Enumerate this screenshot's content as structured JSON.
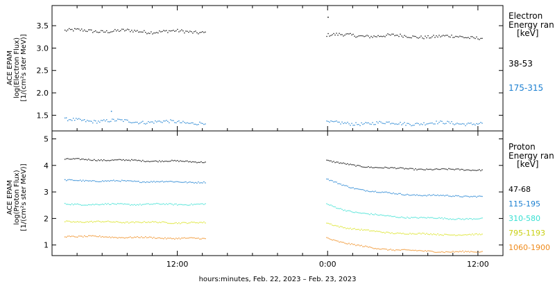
{
  "chart_data": [
    {
      "type": "scatter",
      "ylabel_lines": [
        "ACE EPAM",
        "log(Electron Flux)",
        "[1/(cm²s ster MeV)]"
      ],
      "ylim": [
        1.15,
        3.95
      ],
      "yticks": [
        1.5,
        2.0,
        2.5,
        3.0,
        3.5
      ],
      "ytick_labels": [
        "1.5",
        "2.0",
        "2.5",
        "3.0",
        "3.5"
      ],
      "legend_title": [
        "Electron",
        "Energy ran",
        "[keV]"
      ],
      "series": [
        {
          "name": "38-53",
          "color": "#000000",
          "segments": [
            {
              "x": [
                -21.0,
                -9.8
              ],
              "y": [
                3.4,
                3.37
              ]
            },
            {
              "x": [
                -0.1,
                12.3
              ],
              "y": [
                3.3,
                3.25
              ]
            }
          ],
          "outliers": [
            {
              "x": 0.0,
              "y": 3.7
            }
          ]
        },
        {
          "name": "175-315",
          "color": "#1a7fd1",
          "segments": [
            {
              "x": [
                -21.0,
                -9.8
              ],
              "y": [
                1.4,
                1.34
              ]
            },
            {
              "x": [
                -0.1,
                12.3
              ],
              "y": [
                1.33,
                1.33
              ]
            }
          ],
          "outliers": [
            {
              "x": -17.3,
              "y": 1.6
            }
          ]
        }
      ]
    },
    {
      "type": "scatter",
      "ylabel_lines": [
        "ACE EPAM",
        "log(Proton Flux)",
        "[1/(cm²s ster MeV)]"
      ],
      "ylim": [
        0.6,
        5.3
      ],
      "yticks": [
        1,
        2,
        3,
        4,
        5
      ],
      "ytick_labels": [
        "1",
        "2",
        "3",
        "4",
        "5"
      ],
      "legend_title": [
        "Proton",
        "Energy ran",
        "[keV]"
      ],
      "series": [
        {
          "name": "47-68",
          "color": "#000000",
          "segments": [
            {
              "x": [
                -21.0,
                -9.8
              ],
              "y": [
                4.25,
                4.15
              ]
            },
            {
              "x": [
                -0.1,
                12.3
              ],
              "y": [
                4.2,
                3.85
              ]
            }
          ]
        },
        {
          "name": "115-195",
          "color": "#1a7fd1",
          "segments": [
            {
              "x": [
                -21.0,
                -9.8
              ],
              "y": [
                3.45,
                3.38
              ]
            },
            {
              "x": [
                -0.1,
                12.3
              ],
              "y": [
                3.5,
                2.85
              ]
            }
          ]
        },
        {
          "name": "310-580",
          "color": "#37e0d2",
          "segments": [
            {
              "x": [
                -21.0,
                -9.8
              ],
              "y": [
                2.55,
                2.55
              ]
            },
            {
              "x": [
                -0.1,
                12.3
              ],
              "y": [
                2.55,
                2.0
              ]
            }
          ]
        },
        {
          "name": "795-1193",
          "color": "#d9e21a",
          "segments": [
            {
              "x": [
                -21.0,
                -9.8
              ],
              "y": [
                1.9,
                1.85
              ]
            },
            {
              "x": [
                -0.1,
                12.3
              ],
              "y": [
                1.85,
                1.4
              ]
            }
          ]
        },
        {
          "name": "1060-1900",
          "color": "#ef8a1a",
          "segments": [
            {
              "x": [
                -21.0,
                -9.8
              ],
              "y": [
                1.35,
                1.25
              ]
            },
            {
              "x": [
                -0.1,
                12.3
              ],
              "y": [
                1.3,
                0.75
              ]
            }
          ]
        }
      ]
    }
  ],
  "x_axis": {
    "xlim": [
      -22.0,
      14.0
    ],
    "ticks": [
      -12,
      0,
      12
    ],
    "tick_labels": [
      "12:00",
      "0:00",
      "12:00"
    ],
    "xlabel": "hours:minutes, Feb. 22, 2023 – Feb. 23, 2023"
  }
}
